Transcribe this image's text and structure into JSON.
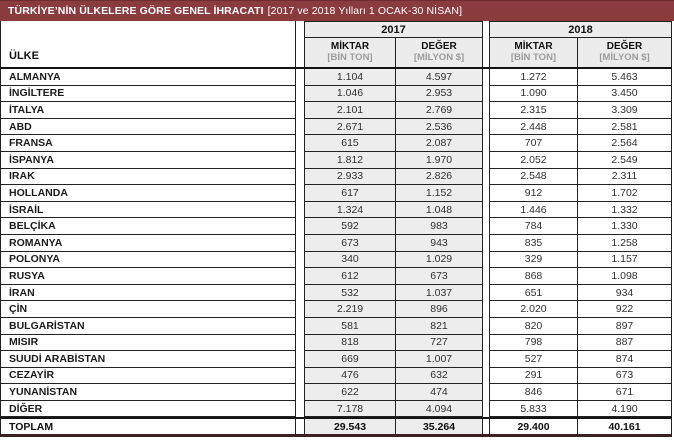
{
  "title_bar": {
    "title": "TÜRKİYE’NİN ÜLKELERE GÖRE GENEL İHRACATI",
    "subtitle": "[2017 ve 2018 Yılları 1 OCAK-30 NİSAN]"
  },
  "table": {
    "country_header": "ÜLKE",
    "year_groups": [
      {
        "year": "2017",
        "columns": [
          {
            "label": "MİKTAR",
            "unit": "[BİN TON]"
          },
          {
            "label": "DEĞER",
            "unit": "[MİLYON $]"
          }
        ]
      },
      {
        "year": "2018",
        "columns": [
          {
            "label": "MİKTAR",
            "unit": "[BİN TON]"
          },
          {
            "label": "DEĞER",
            "unit": "[MİLYON $]"
          }
        ]
      }
    ],
    "rows": [
      {
        "country": "ALMANYA",
        "values": [
          "1.104",
          "4.597",
          "1.272",
          "5.463"
        ]
      },
      {
        "country": "İNGİLTERE",
        "values": [
          "1.046",
          "2.953",
          "1.090",
          "3.450"
        ]
      },
      {
        "country": "İTALYA",
        "values": [
          "2.101",
          "2.769",
          "2.315",
          "3.309"
        ]
      },
      {
        "country": "ABD",
        "values": [
          "2.671",
          "2.536",
          "2.448",
          "2.581"
        ]
      },
      {
        "country": "FRANSA",
        "values": [
          "615",
          "2.087",
          "707",
          "2.564"
        ]
      },
      {
        "country": "İSPANYA",
        "values": [
          "1.812",
          "1.970",
          "2.052",
          "2.549"
        ]
      },
      {
        "country": "IRAK",
        "values": [
          "2.933",
          "2.826",
          "2.548",
          "2.311"
        ]
      },
      {
        "country": "HOLLANDA",
        "values": [
          "617",
          "1.152",
          "912",
          "1.702"
        ]
      },
      {
        "country": "İSRAİL",
        "values": [
          "1.324",
          "1.048",
          "1.446",
          "1.332"
        ]
      },
      {
        "country": "BELÇİKA",
        "values": [
          "592",
          "983",
          "784",
          "1.330"
        ]
      },
      {
        "country": "ROMANYA",
        "values": [
          "673",
          "943",
          "835",
          "1.258"
        ]
      },
      {
        "country": "POLONYA",
        "values": [
          "340",
          "1.029",
          "329",
          "1.157"
        ]
      },
      {
        "country": "RUSYA",
        "values": [
          "612",
          "673",
          "868",
          "1.098"
        ]
      },
      {
        "country": "İRAN",
        "values": [
          "532",
          "1.037",
          "651",
          "934"
        ]
      },
      {
        "country": "ÇİN",
        "values": [
          "2.219",
          "896",
          "2.020",
          "922"
        ]
      },
      {
        "country": "BULGARİSTAN",
        "values": [
          "581",
          "821",
          "820",
          "897"
        ]
      },
      {
        "country": "MISIR",
        "values": [
          "818",
          "727",
          "798",
          "887"
        ]
      },
      {
        "country": "SUUDİ ARABİSTAN",
        "values": [
          "669",
          "1.007",
          "527",
          "874"
        ]
      },
      {
        "country": "CEZAYİR",
        "values": [
          "476",
          "632",
          "291",
          "673"
        ]
      },
      {
        "country": "YUNANİSTAN",
        "values": [
          "622",
          "474",
          "846",
          "671"
        ]
      },
      {
        "country": "DİĞER",
        "values": [
          "7.178",
          "4.094",
          "5.833",
          "4.190"
        ]
      }
    ],
    "total": {
      "label": "TOPLAM",
      "values": [
        "29.543",
        "35.264",
        "29.400",
        "40.161"
      ]
    }
  },
  "colors": {
    "title_bar_bg": "#8a3b3d",
    "shaded_column_bg": "#ededed",
    "header_bg": "#ececec",
    "bottom_border": "#3c2022"
  },
  "chart_data": {
    "type": "table",
    "title": "TÜRKİYE’NİN ÜLKELERE GÖRE GENEL İHRACATI [2017 ve 2018 Yılları 1 OCAK-30 NİSAN]",
    "columns": [
      "ÜLKE",
      "2017 MİKTAR (BİN TON)",
      "2017 DEĞER (MİLYON $)",
      "2018 MİKTAR (BİN TON)",
      "2018 DEĞER (MİLYON $)"
    ],
    "rows": [
      [
        "ALMANYA",
        1104,
        4597,
        1272,
        5463
      ],
      [
        "İNGİLTERE",
        1046,
        2953,
        1090,
        3450
      ],
      [
        "İTALYA",
        2101,
        2769,
        2315,
        3309
      ],
      [
        "ABD",
        2671,
        2536,
        2448,
        2581
      ],
      [
        "FRANSA",
        615,
        2087,
        707,
        2564
      ],
      [
        "İSPANYA",
        1812,
        1970,
        2052,
        2549
      ],
      [
        "IRAK",
        2933,
        2826,
        2548,
        2311
      ],
      [
        "HOLLANDA",
        617,
        1152,
        912,
        1702
      ],
      [
        "İSRAİL",
        1324,
        1048,
        1446,
        1332
      ],
      [
        "BELÇİKA",
        592,
        983,
        784,
        1330
      ],
      [
        "ROMANYA",
        673,
        943,
        835,
        1258
      ],
      [
        "POLONYA",
        340,
        1029,
        329,
        1157
      ],
      [
        "RUSYA",
        612,
        673,
        868,
        1098
      ],
      [
        "İRAN",
        532,
        1037,
        651,
        934
      ],
      [
        "ÇİN",
        2219,
        896,
        2020,
        922
      ],
      [
        "BULGARİSTAN",
        581,
        821,
        820,
        897
      ],
      [
        "MISIR",
        818,
        727,
        798,
        887
      ],
      [
        "SUUDİ ARABİSTAN",
        669,
        1007,
        527,
        874
      ],
      [
        "CEZAYİR",
        476,
        632,
        291,
        673
      ],
      [
        "YUNANİSTAN",
        622,
        474,
        846,
        671
      ],
      [
        "DİĞER",
        7178,
        4094,
        5833,
        4190
      ],
      [
        "TOPLAM",
        29543,
        35264,
        29400,
        40161
      ]
    ]
  }
}
